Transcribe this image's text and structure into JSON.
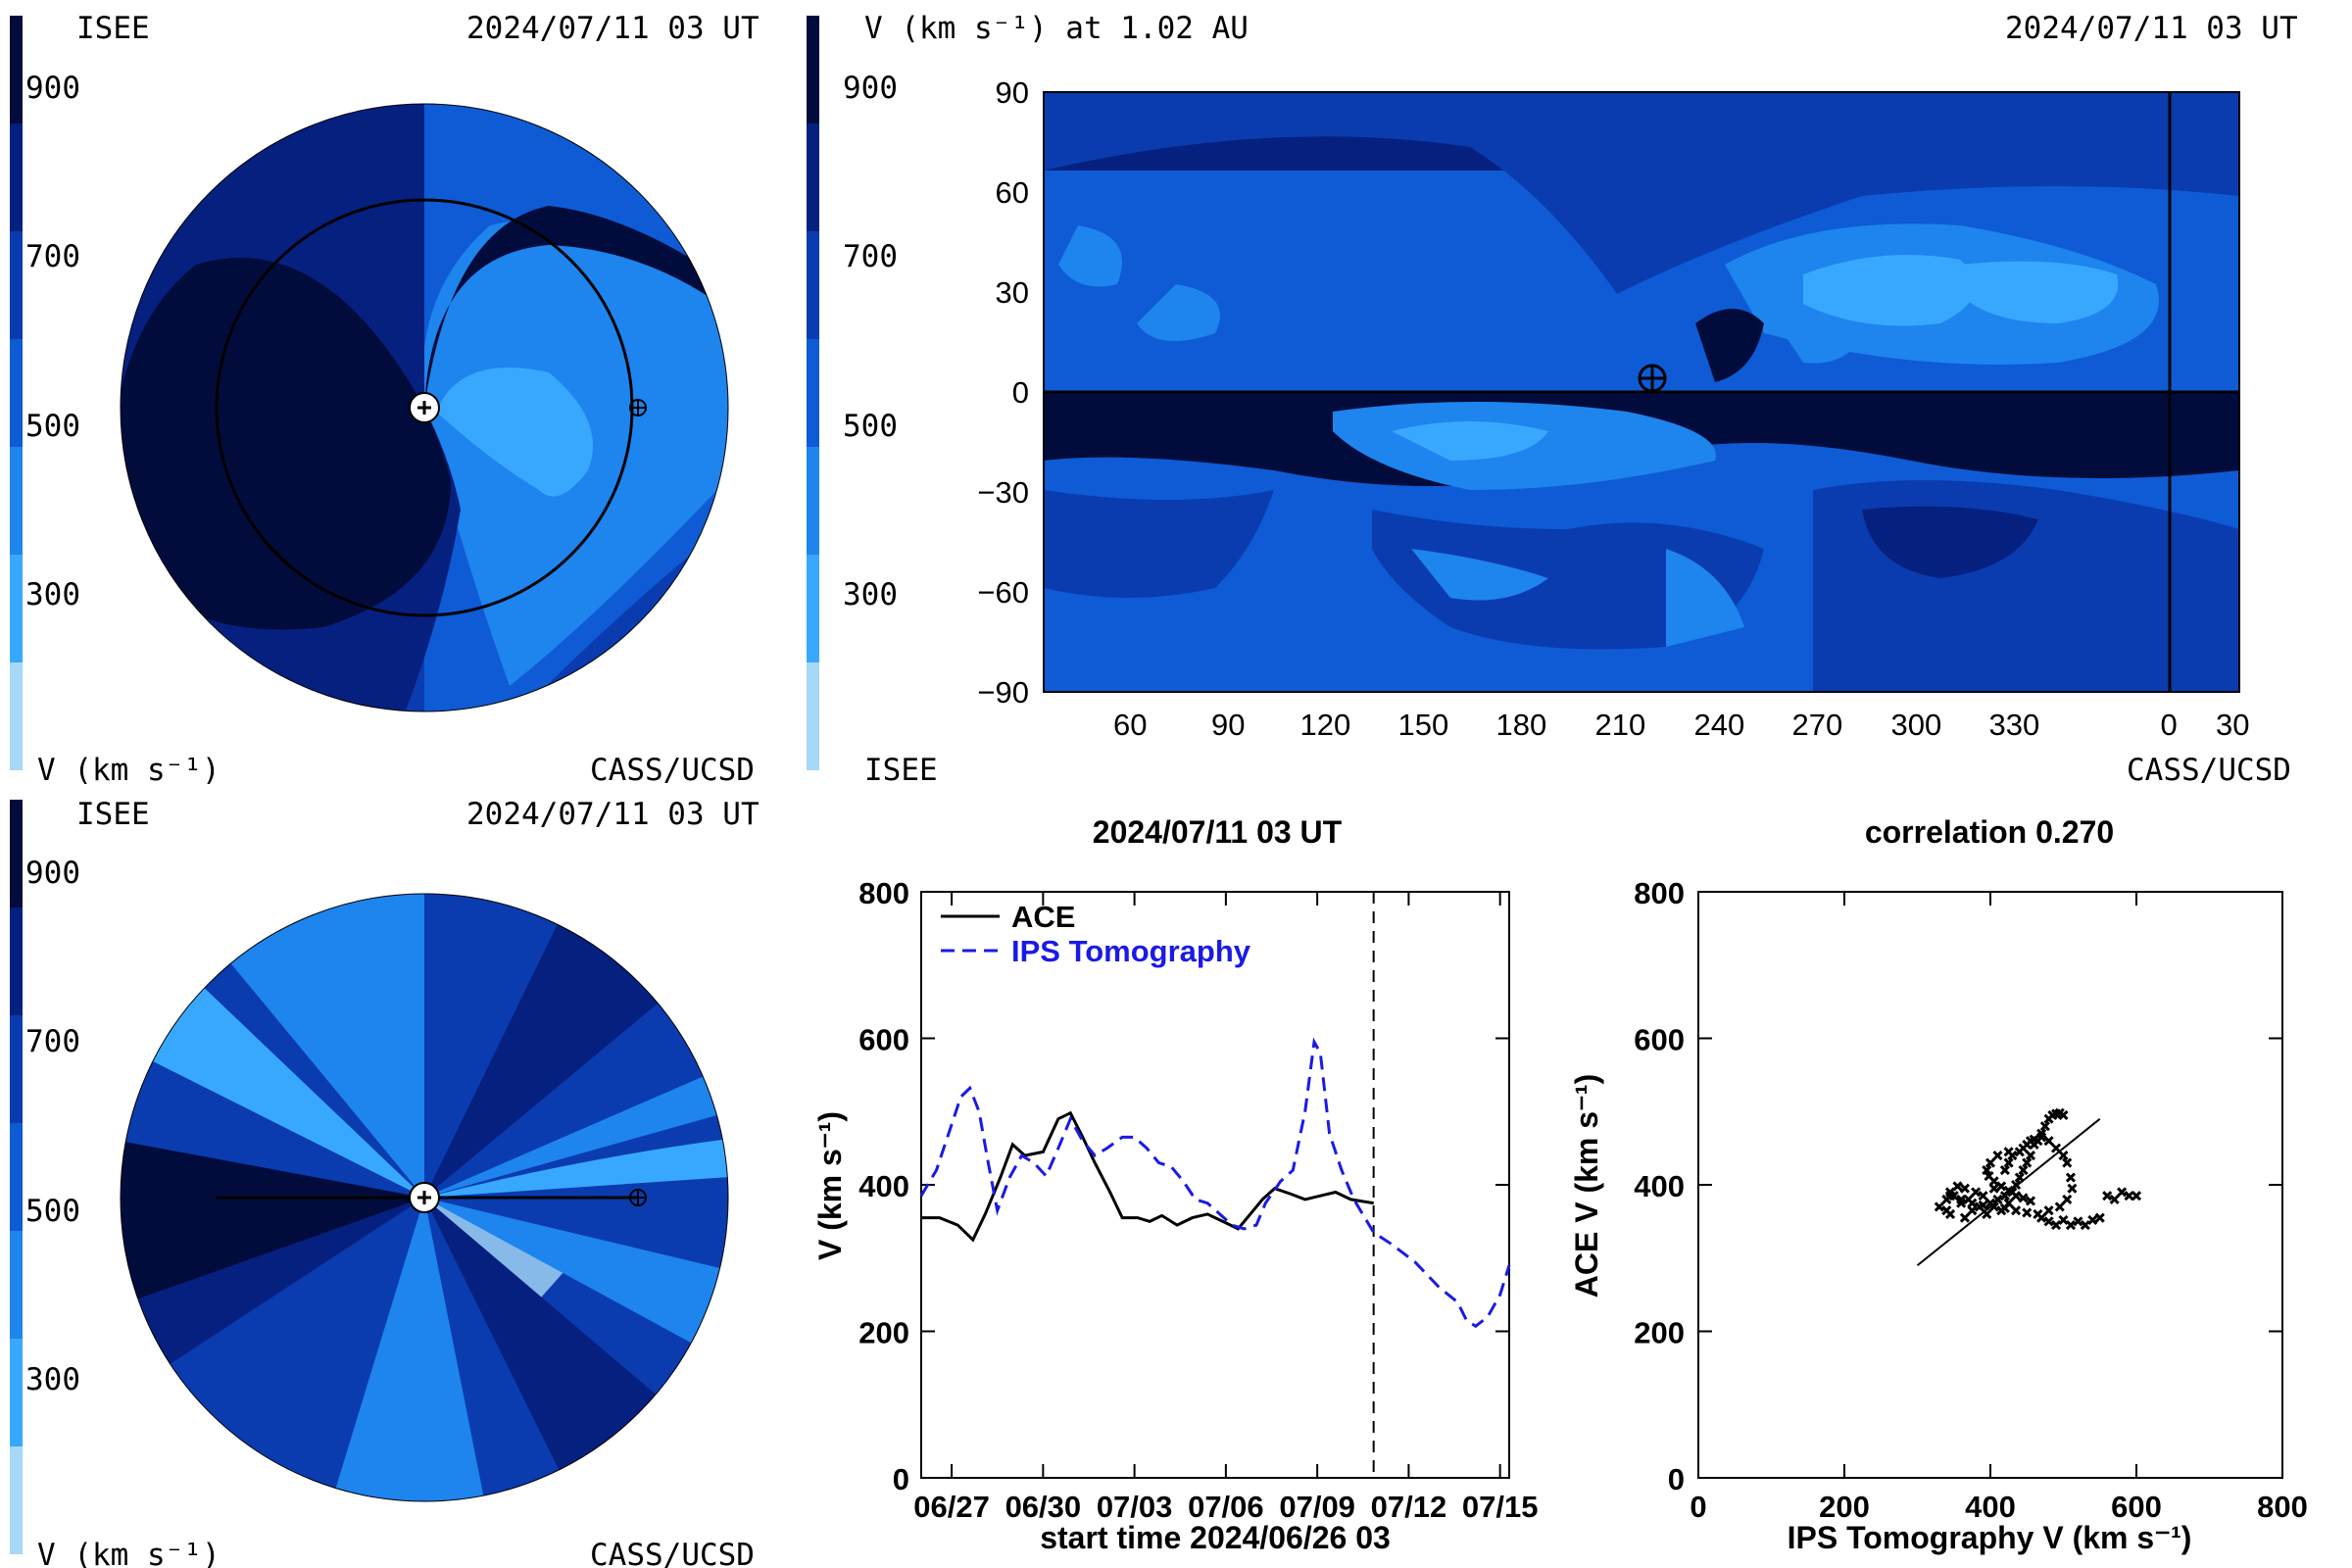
{
  "palette": [
    "#a6d8f8",
    "#38a8ff",
    "#1e84ee",
    "#0e5bd5",
    "#0a3cb0",
    "#062080",
    "#010c3c"
  ],
  "colorbar_ticks": [
    "900",
    "700",
    "500",
    "300"
  ],
  "panel_tl": {
    "org_left": "ISEE",
    "timestamp": "2024/07/11 03 UT",
    "footer_left": "V (km s⁻¹)",
    "footer_right": "CASS/UCSD"
  },
  "panel_bl": {
    "org_left": "ISEE",
    "timestamp": "2024/07/11 03 UT",
    "footer_left": "V (km s⁻¹)",
    "footer_right": "CASS/UCSD"
  },
  "panel_map": {
    "title": "V (km s⁻¹) at 1.02 AU",
    "timestamp": "2024/07/11 03 UT",
    "footer_left": "ISEE",
    "footer_right": "CASS/UCSD",
    "y_ticks": [
      "90",
      "60",
      "30",
      "0",
      "−30",
      "−60",
      "−90"
    ],
    "x_ticks": [
      "60",
      "90",
      "120",
      "150",
      "180",
      "210",
      "240",
      "270",
      "300",
      "330",
      "0",
      "30"
    ]
  },
  "chart_data": [
    {
      "type": "line",
      "title": "2024/07/11 03 UT",
      "xlabel": "start time 2024/06/26 03",
      "ylabel": "V (km s⁻¹)",
      "x_tick_labels": [
        "06/27",
        "06/30",
        "07/03",
        "07/06",
        "07/09",
        "07/12",
        "07/15"
      ],
      "x_tick_days": [
        1,
        4,
        7,
        10,
        13,
        16,
        19
      ],
      "y_ticks": [
        0,
        200,
        400,
        600,
        800
      ],
      "xlim_days": [
        0,
        19.3
      ],
      "ylim": [
        0,
        800
      ],
      "current_time_day": 14.85,
      "series": [
        {
          "name": "ACE",
          "style": "solid",
          "color": "#000000",
          "points": [
            [
              0,
              355
            ],
            [
              0.6,
              355
            ],
            [
              1.2,
              345
            ],
            [
              1.7,
              325
            ],
            [
              2.1,
              360
            ],
            [
              2.6,
              410
            ],
            [
              3.0,
              455
            ],
            [
              3.4,
              440
            ],
            [
              4.0,
              445
            ],
            [
              4.5,
              490
            ],
            [
              4.9,
              498
            ],
            [
              5.3,
              465
            ],
            [
              5.7,
              430
            ],
            [
              6.2,
              390
            ],
            [
              6.6,
              355
            ],
            [
              7.1,
              355
            ],
            [
              7.5,
              350
            ],
            [
              7.9,
              358
            ],
            [
              8.4,
              345
            ],
            [
              8.9,
              355
            ],
            [
              9.4,
              360
            ],
            [
              9.9,
              350
            ],
            [
              10.4,
              340
            ],
            [
              10.8,
              360
            ],
            [
              11.2,
              380
            ],
            [
              11.6,
              395
            ],
            [
              12.1,
              388
            ],
            [
              12.6,
              380
            ],
            [
              13.1,
              385
            ],
            [
              13.6,
              390
            ],
            [
              14.1,
              380
            ],
            [
              14.85,
              375
            ]
          ]
        },
        {
          "name": "IPS Tomography",
          "style": "dashed",
          "color": "#1a1ae6",
          "points": [
            [
              0,
              385
            ],
            [
              0.5,
              420
            ],
            [
              0.9,
              470
            ],
            [
              1.3,
              520
            ],
            [
              1.6,
              532
            ],
            [
              1.9,
              500
            ],
            [
              2.2,
              430
            ],
            [
              2.5,
              365
            ],
            [
              2.9,
              410
            ],
            [
              3.3,
              440
            ],
            [
              3.7,
              430
            ],
            [
              4.1,
              412
            ],
            [
              4.5,
              450
            ],
            [
              4.9,
              490
            ],
            [
              5.3,
              460
            ],
            [
              5.7,
              440
            ],
            [
              6.1,
              450
            ],
            [
              6.6,
              465
            ],
            [
              7.0,
              465
            ],
            [
              7.4,
              450
            ],
            [
              7.8,
              430
            ],
            [
              8.2,
              425
            ],
            [
              8.6,
              405
            ],
            [
              9.0,
              380
            ],
            [
              9.4,
              375
            ],
            [
              9.8,
              360
            ],
            [
              10.2,
              345
            ],
            [
              10.6,
              340
            ],
            [
              11.0,
              345
            ],
            [
              11.3,
              375
            ],
            [
              11.8,
              405
            ],
            [
              12.2,
              420
            ],
            [
              12.6,
              500
            ],
            [
              12.9,
              595
            ],
            [
              13.1,
              580
            ],
            [
              13.4,
              470
            ],
            [
              13.8,
              420
            ],
            [
              14.2,
              380
            ],
            [
              14.85,
              335
            ],
            [
              15.4,
              320
            ],
            [
              16.2,
              295
            ],
            [
              17.0,
              260
            ],
            [
              17.6,
              240
            ],
            [
              17.9,
              215
            ],
            [
              18.2,
              207
            ],
            [
              18.6,
              220
            ],
            [
              19.0,
              250
            ],
            [
              19.3,
              290
            ]
          ]
        }
      ]
    },
    {
      "type": "scatter",
      "title": "correlation 0.270",
      "xlabel": "IPS Tomography V (km s⁻¹)",
      "ylabel": "ACE V (km s⁻¹)",
      "x_ticks": [
        0,
        200,
        400,
        600,
        800
      ],
      "y_ticks": [
        0,
        200,
        400,
        600,
        800
      ],
      "xlim": [
        0,
        800
      ],
      "ylim": [
        0,
        800
      ],
      "fit_line": [
        [
          300,
          290
        ],
        [
          550,
          490
        ]
      ],
      "points": [
        [
          330,
          370
        ],
        [
          340,
          380
        ],
        [
          345,
          360
        ],
        [
          350,
          385
        ],
        [
          360,
          375
        ],
        [
          365,
          355
        ],
        [
          370,
          380
        ],
        [
          375,
          365
        ],
        [
          380,
          390
        ],
        [
          385,
          370
        ],
        [
          390,
          385
        ],
        [
          395,
          360
        ],
        [
          400,
          375
        ],
        [
          405,
          395
        ],
        [
          410,
          380
        ],
        [
          415,
          365
        ],
        [
          420,
          385
        ],
        [
          425,
          375
        ],
        [
          430,
          390
        ],
        [
          435,
          400
        ],
        [
          440,
          410
        ],
        [
          445,
          420
        ],
        [
          450,
          430
        ],
        [
          455,
          440
        ],
        [
          460,
          455
        ],
        [
          465,
          460
        ],
        [
          470,
          470
        ],
        [
          475,
          480
        ],
        [
          480,
          490
        ],
        [
          485,
          495
        ],
        [
          490,
          497
        ],
        [
          495,
          498
        ],
        [
          500,
          495
        ],
        [
          420,
          420
        ],
        [
          425,
          430
        ],
        [
          430,
          440
        ],
        [
          440,
          445
        ],
        [
          445,
          450
        ],
        [
          450,
          455
        ],
        [
          455,
          460
        ],
        [
          460,
          462
        ],
        [
          470,
          465
        ],
        [
          480,
          460
        ],
        [
          490,
          450
        ],
        [
          500,
          440
        ],
        [
          505,
          430
        ],
        [
          510,
          410
        ],
        [
          512,
          395
        ],
        [
          505,
          380
        ],
        [
          495,
          370
        ],
        [
          480,
          365
        ],
        [
          465,
          360
        ],
        [
          450,
          362
        ],
        [
          435,
          365
        ],
        [
          420,
          368
        ],
        [
          405,
          370
        ],
        [
          390,
          372
        ],
        [
          375,
          375
        ],
        [
          360,
          380
        ],
        [
          345,
          385
        ],
        [
          470,
          355
        ],
        [
          480,
          350
        ],
        [
          490,
          345
        ],
        [
          500,
          352
        ],
        [
          510,
          345
        ],
        [
          520,
          350
        ],
        [
          530,
          345
        ],
        [
          540,
          352
        ],
        [
          550,
          355
        ],
        [
          560,
          385
        ],
        [
          570,
          380
        ],
        [
          580,
          390
        ],
        [
          590,
          385
        ],
        [
          600,
          385
        ],
        [
          455,
          378
        ],
        [
          445,
          382
        ],
        [
          435,
          385
        ],
        [
          425,
          392
        ],
        [
          415,
          398
        ],
        [
          405,
          405
        ],
        [
          398,
          412
        ],
        [
          395,
          420
        ],
        [
          400,
          430
        ],
        [
          410,
          440
        ],
        [
          425,
          445
        ],
        [
          365,
          395
        ],
        [
          355,
          398
        ],
        [
          345,
          390
        ],
        [
          340,
          365
        ]
      ]
    }
  ]
}
